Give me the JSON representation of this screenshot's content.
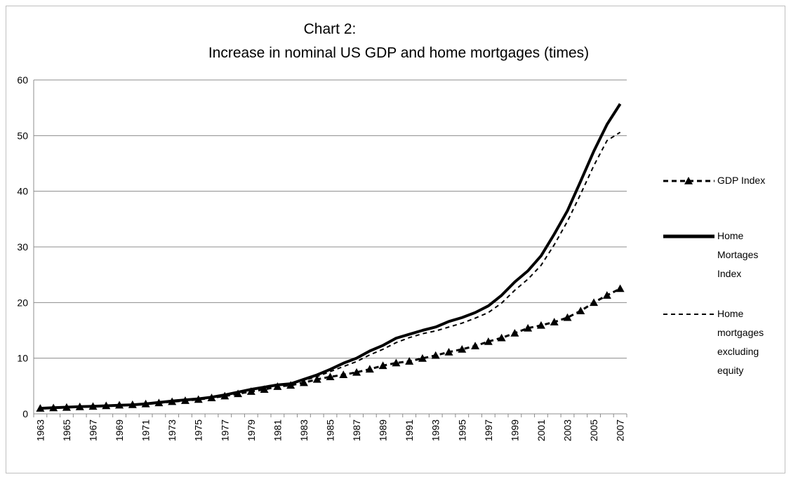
{
  "chart_data": {
    "type": "line",
    "title": [
      "Chart 2:",
      "Increase in nominal US GDP and home mortgages (times)"
    ],
    "categories": [
      "1963",
      null,
      "1965",
      null,
      "1967",
      null,
      "1969",
      null,
      "1971",
      null,
      "1973",
      null,
      "1975",
      null,
      "1977",
      null,
      "1979",
      null,
      "1981",
      null,
      "1983",
      null,
      "1985",
      null,
      "1987",
      null,
      "1989",
      null,
      "1991",
      null,
      "1993",
      null,
      "1995",
      null,
      "1997",
      null,
      "1999",
      null,
      "2001",
      null,
      "2003",
      null,
      "2005",
      null,
      "2007"
    ],
    "series": [
      {
        "name": "GDP Index",
        "color": "#000000",
        "dash": "7,5",
        "width": 3,
        "marker": "triangle",
        "values": [
          1.0,
          1.07,
          1.16,
          1.27,
          1.34,
          1.46,
          1.57,
          1.65,
          1.79,
          1.97,
          2.19,
          2.38,
          2.59,
          2.88,
          3.2,
          3.61,
          4.02,
          4.38,
          4.91,
          5.13,
          5.6,
          6.2,
          6.65,
          7.03,
          7.46,
          8.03,
          8.66,
          9.15,
          9.45,
          9.97,
          10.5,
          11.1,
          11.6,
          12.2,
          12.99,
          13.65,
          14.5,
          15.4,
          15.9,
          16.5,
          17.3,
          18.5,
          20.0,
          21.3,
          22.5
        ]
      },
      {
        "name": "Home Mortages Index",
        "color": "#000000",
        "dash": "none",
        "width": 4,
        "marker": "none",
        "values": [
          1.0,
          1.1,
          1.2,
          1.3,
          1.35,
          1.45,
          1.55,
          1.62,
          1.8,
          2.05,
          2.3,
          2.5,
          2.7,
          3.0,
          3.4,
          3.9,
          4.4,
          4.8,
          5.2,
          5.4,
          6.2,
          7.0,
          8.0,
          9.1,
          10.0,
          11.3,
          12.3,
          13.6,
          14.3,
          15.0,
          15.6,
          16.6,
          17.3,
          18.2,
          19.4,
          21.3,
          23.7,
          25.7,
          28.4,
          32.3,
          36.5,
          41.8,
          47.2,
          52.0,
          55.7
        ]
      },
      {
        "name": "Home mortgages excluding equity",
        "color": "#000000",
        "dash": "6,5",
        "width": 2,
        "marker": "none",
        "values": [
          1.0,
          1.1,
          1.2,
          1.3,
          1.35,
          1.45,
          1.55,
          1.62,
          1.8,
          2.05,
          2.3,
          2.5,
          2.7,
          3.0,
          3.4,
          3.9,
          4.4,
          4.8,
          5.2,
          5.4,
          6.0,
          6.7,
          7.6,
          8.5,
          9.4,
          10.6,
          11.6,
          12.8,
          13.7,
          14.4,
          14.9,
          15.6,
          16.3,
          17.2,
          18.2,
          19.9,
          22.2,
          24.2,
          26.7,
          30.4,
          34.6,
          39.5,
          44.6,
          49.1,
          50.6
        ]
      }
    ],
    "ylim": [
      0,
      60
    ],
    "yticks": [
      0,
      10,
      20,
      30,
      40,
      50,
      60
    ],
    "grid": true,
    "legend": "right"
  }
}
